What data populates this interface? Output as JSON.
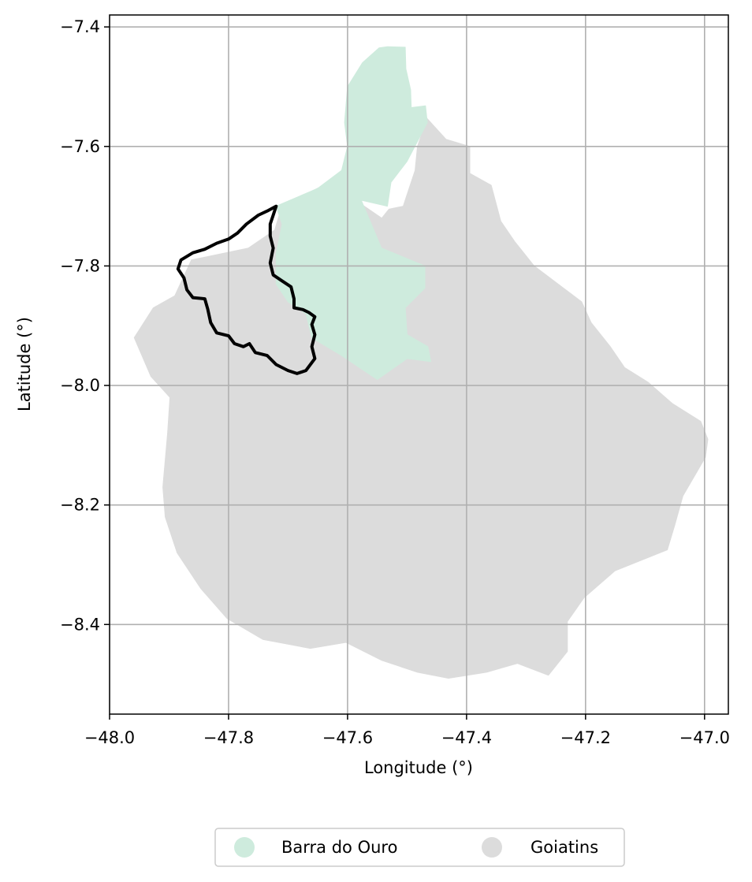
{
  "chart_data": {
    "type": "map",
    "title": "",
    "xlabel": "Longitude (°)",
    "ylabel": "Latitude (°)",
    "xlim": [
      -48.0,
      -46.96
    ],
    "ylim": [
      -8.55,
      -7.38
    ],
    "x_ticks": [
      -48.0,
      -47.8,
      -47.6,
      -47.4,
      -47.2,
      -47.0
    ],
    "x_tick_labels": [
      "−48.0",
      "−47.8",
      "−47.6",
      "−47.4",
      "−47.2",
      "−47.0"
    ],
    "y_ticks": [
      -7.4,
      -7.6,
      -7.8,
      -8.0,
      -8.2,
      -8.4
    ],
    "y_tick_labels": [
      "−7.4",
      "−7.6",
      "−7.8",
      "−8.0",
      "−8.2",
      "−8.4"
    ],
    "grid": true,
    "legend_position": "bottom-center",
    "series": [
      {
        "name": "Barra do Ouro",
        "color": "#ceebdd",
        "polygon": [
          [
            -47.547,
            -7.435
          ],
          [
            -47.533,
            -7.433
          ],
          [
            -47.503,
            -7.434
          ],
          [
            -47.502,
            -7.47
          ],
          [
            -47.494,
            -7.505
          ],
          [
            -47.493,
            -7.535
          ],
          [
            -47.469,
            -7.532
          ],
          [
            -47.466,
            -7.56
          ],
          [
            -47.5,
            -7.625
          ],
          [
            -47.527,
            -7.66
          ],
          [
            -47.533,
            -7.7
          ],
          [
            -47.577,
            -7.69
          ],
          [
            -47.543,
            -7.77
          ],
          [
            -47.47,
            -7.8
          ],
          [
            -47.47,
            -7.837
          ],
          [
            -47.503,
            -7.87
          ],
          [
            -47.5,
            -7.915
          ],
          [
            -47.465,
            -7.935
          ],
          [
            -47.46,
            -7.96
          ],
          [
            -47.5,
            -7.955
          ],
          [
            -47.55,
            -7.99
          ],
          [
            -47.58,
            -7.97
          ],
          [
            -47.61,
            -7.95
          ],
          [
            -47.66,
            -7.92
          ],
          [
            -47.67,
            -7.88
          ],
          [
            -47.7,
            -7.86
          ],
          [
            -47.72,
            -7.83
          ],
          [
            -47.72,
            -7.78
          ],
          [
            -47.71,
            -7.73
          ],
          [
            -47.72,
            -7.7
          ],
          [
            -47.65,
            -7.67
          ],
          [
            -47.61,
            -7.64
          ],
          [
            -47.6,
            -7.6
          ],
          [
            -47.605,
            -7.56
          ],
          [
            -47.6,
            -7.5
          ],
          [
            -47.575,
            -7.46
          ]
        ]
      },
      {
        "name": "Goiatins",
        "color": "#dcdcdc",
        "polygon": [
          [
            -47.4665,
            -7.553
          ],
          [
            -47.4345,
            -7.588
          ],
          [
            -47.3945,
            -7.6
          ],
          [
            -47.3945,
            -7.645
          ],
          [
            -47.3585,
            -7.665
          ],
          [
            -47.3425,
            -7.725
          ],
          [
            -47.3185,
            -7.76
          ],
          [
            -47.3025,
            -7.78
          ],
          [
            -47.2865,
            -7.8
          ],
          [
            -47.2465,
            -7.83
          ],
          [
            -47.2065,
            -7.86
          ],
          [
            -47.1905,
            -7.895
          ],
          [
            -47.1585,
            -7.935
          ],
          [
            -47.1345,
            -7.97
          ],
          [
            -47.0945,
            -7.995
          ],
          [
            -47.0545,
            -8.03
          ],
          [
            -47.0065,
            -8.06
          ],
          [
            -46.9945,
            -8.09
          ],
          [
            -46.9985,
            -8.12
          ],
          [
            -47.0365,
            -8.185
          ],
          [
            -47.0505,
            -8.235
          ],
          [
            -47.0625,
            -8.275
          ],
          [
            -47.1505,
            -8.31
          ],
          [
            -47.2025,
            -8.355
          ],
          [
            -47.2305,
            -8.395
          ],
          [
            -47.2305,
            -8.445
          ],
          [
            -47.2625,
            -8.485
          ],
          [
            -47.3145,
            -8.465
          ],
          [
            -47.3665,
            -8.48
          ],
          [
            -47.4305,
            -8.49
          ],
          [
            -47.4825,
            -8.48
          ],
          [
            -47.5425,
            -8.46
          ],
          [
            -47.6025,
            -8.43
          ],
          [
            -47.6625,
            -8.44
          ],
          [
            -47.7425,
            -8.425
          ],
          [
            -47.8025,
            -8.39
          ],
          [
            -47.8465,
            -8.34
          ],
          [
            -47.8865,
            -8.28
          ],
          [
            -47.9065,
            -8.22
          ],
          [
            -47.9105,
            -8.17
          ],
          [
            -47.9025,
            -8.08
          ],
          [
            -47.8985,
            -8.02
          ],
          [
            -47.9305,
            -7.985
          ],
          [
            -47.9585,
            -7.92
          ],
          [
            -47.9265,
            -7.87
          ],
          [
            -47.8905,
            -7.85
          ],
          [
            -47.8625,
            -7.79
          ],
          [
            -47.7665,
            -7.77
          ],
          [
            -47.7225,
            -7.74
          ],
          [
            -47.7105,
            -7.7
          ],
          [
            -47.6305,
            -7.66
          ],
          [
            -47.5425,
            -7.72
          ],
          [
            -47.5305,
            -7.705
          ],
          [
            -47.5065,
            -7.7
          ],
          [
            -47.4865,
            -7.64
          ],
          [
            -47.4825,
            -7.6
          ]
        ]
      }
    ],
    "outline": {
      "color": "#000000",
      "polygon": [
        [
          -47.72,
          -7.7
        ],
        [
          -47.735,
          -7.708
        ],
        [
          -47.75,
          -7.715
        ],
        [
          -47.77,
          -7.73
        ],
        [
          -47.785,
          -7.745
        ],
        [
          -47.8,
          -7.755
        ],
        [
          -47.82,
          -7.762
        ],
        [
          -47.84,
          -7.772
        ],
        [
          -47.86,
          -7.778
        ],
        [
          -47.88,
          -7.79
        ],
        [
          -47.885,
          -7.805
        ],
        [
          -47.875,
          -7.82
        ],
        [
          -47.87,
          -7.84
        ],
        [
          -47.86,
          -7.853
        ],
        [
          -47.84,
          -7.855
        ],
        [
          -47.835,
          -7.872
        ],
        [
          -47.83,
          -7.895
        ],
        [
          -47.82,
          -7.912
        ],
        [
          -47.8,
          -7.917
        ],
        [
          -47.79,
          -7.93
        ],
        [
          -47.775,
          -7.935
        ],
        [
          -47.765,
          -7.93
        ],
        [
          -47.755,
          -7.945
        ],
        [
          -47.735,
          -7.95
        ],
        [
          -47.72,
          -7.965
        ],
        [
          -47.7,
          -7.975
        ],
        [
          -47.685,
          -7.98
        ],
        [
          -47.67,
          -7.975
        ],
        [
          -47.655,
          -7.955
        ],
        [
          -47.66,
          -7.935
        ],
        [
          -47.655,
          -7.915
        ],
        [
          -47.66,
          -7.898
        ],
        [
          -47.655,
          -7.885
        ],
        [
          -47.665,
          -7.878
        ],
        [
          -47.675,
          -7.873
        ],
        [
          -47.69,
          -7.87
        ],
        [
          -47.69,
          -7.855
        ],
        [
          -47.695,
          -7.835
        ],
        [
          -47.71,
          -7.825
        ],
        [
          -47.725,
          -7.815
        ],
        [
          -47.73,
          -7.795
        ],
        [
          -47.725,
          -7.77
        ],
        [
          -47.73,
          -7.75
        ],
        [
          -47.73,
          -7.73
        ],
        [
          -47.725,
          -7.715
        ]
      ]
    }
  }
}
